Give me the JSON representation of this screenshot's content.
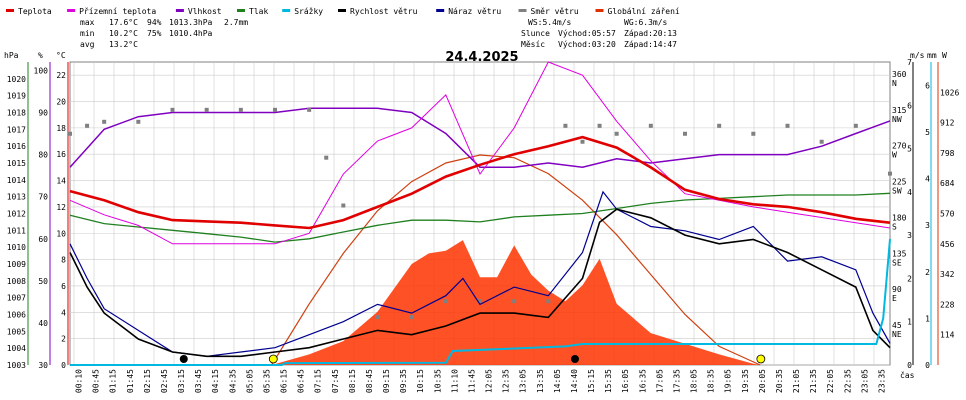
{
  "chart_data": {
    "type": "line",
    "title": "24.4.2025",
    "legend": [
      {
        "name": "Teplota",
        "color": "#e00000"
      },
      {
        "name": "Přízemní teplota",
        "color": "#e000e0"
      },
      {
        "name": "Vlhkost",
        "color": "#8000c0"
      },
      {
        "name": "Tlak",
        "color": "#208020"
      },
      {
        "name": "Srážky",
        "color": "#00b8e0"
      },
      {
        "name": "Rychlost větru",
        "color": "#000000"
      },
      {
        "name": "Náraz větru",
        "color": "#000090"
      },
      {
        "name": "Směr větru",
        "color": "#808080"
      },
      {
        "name": "Globální záření",
        "color": "#e03000"
      }
    ],
    "stats": {
      "max_label": "max",
      "max_temp": "17.6°C",
      "max_hum": "94%",
      "max_press": "1013.3hPa",
      "max_rain": "2.7mm",
      "min_label": "min",
      "min_temp": "10.2°C",
      "min_hum": "75%",
      "min_press": "1010.4hPa",
      "avg_label": "avg",
      "avg_temp": "13.2°C"
    },
    "info": {
      "ws": "WS:5.4m/s",
      "wg": "WG:6.3m/s",
      "sun_label": "Slunce",
      "sun_rise": "Východ:05:57",
      "sun_set": "Západ:20:13",
      "moon_label": "Měsíc",
      "moon_rise": "Východ:03:20",
      "moon_set": "Západ:14:47"
    },
    "axis_units": {
      "hpa": "hPa",
      "pct": "%",
      "degc": "°C",
      "ms": "m/s",
      "mm": "mm",
      "w": "W",
      "x": "čas"
    },
    "axis_hpa": [
      1003,
      1004,
      1005,
      1006,
      1007,
      1008,
      1009,
      1010,
      1011,
      1012,
      1013,
      1014,
      1015,
      1016,
      1017,
      1018,
      1019,
      1020
    ],
    "axis_pct": [
      30,
      40,
      50,
      60,
      70,
      80,
      90,
      100
    ],
    "axis_temp": [
      0,
      2,
      4,
      6,
      8,
      10,
      12,
      14,
      16,
      18,
      20,
      22
    ],
    "axis_dir": [
      {
        "v": 360,
        "n": "N"
      },
      {
        "v": 315,
        "n": "NW"
      },
      {
        "v": 270,
        "n": "W"
      },
      {
        "v": 225,
        "n": "SW"
      },
      {
        "v": 180,
        "n": "S"
      },
      {
        "v": 135,
        "n": "SE"
      },
      {
        "v": 90,
        "n": "E"
      },
      {
        "v": 45,
        "n": "NE"
      }
    ],
    "axis_ms": [
      0,
      1,
      2,
      3,
      4,
      5,
      6,
      7
    ],
    "axis_mm": [
      0,
      1,
      2,
      3,
      4,
      5,
      6
    ],
    "axis_w": [
      114,
      228,
      342,
      456,
      570,
      684,
      798,
      912,
      1026
    ],
    "x_ticks": [
      "00:10",
      "00:45",
      "01:20",
      "01:55",
      "02:30",
      "03:05",
      "03:40",
      "04:15",
      "04:50",
      "05:25",
      "06:00",
      "06:35",
      "07:10",
      "07:45",
      "08:20",
      "08:55",
      "09:30",
      "10:05",
      "10:40",
      "11:15",
      "11:50",
      "12:25",
      "13:00",
      "13:35",
      "14:10",
      "14:45",
      "15:20",
      "15:55",
      "16:30",
      "17:05",
      "17:40",
      "18:15",
      "18:50",
      "19:25",
      "20:00",
      "20:35",
      "21:10",
      "21:45",
      "22:20",
      "22:55",
      "23:30"
    ],
    "x_labels_drawn": [
      "00:10",
      "00:45",
      "01:15",
      "01:45",
      "02:15",
      "02:45",
      "03:15",
      "03:45",
      "04:15",
      "04:35",
      "05:05",
      "05:35",
      "06:15",
      "06:45",
      "07:15",
      "07:45",
      "08:15",
      "08:45",
      "09:15",
      "09:35",
      "10:15",
      "10:35",
      "11:10",
      "11:45",
      "12:05",
      "12:35",
      "13:05",
      "13:35",
      "14:05",
      "14:40",
      "15:15",
      "15:35",
      "16:05",
      "16:35",
      "17:05",
      "17:35",
      "18:05",
      "18:35",
      "19:05",
      "19:35",
      "20:05",
      "20:35",
      "21:05",
      "21:35",
      "22:05",
      "22:35",
      "23:05",
      "23:35"
    ],
    "series": {
      "temperature": [
        [
          0,
          13.2
        ],
        [
          1,
          12.5
        ],
        [
          2,
          11.6
        ],
        [
          3,
          11.0
        ],
        [
          4,
          10.9
        ],
        [
          5,
          10.8
        ],
        [
          6,
          10.6
        ],
        [
          7,
          10.4
        ],
        [
          8,
          11.0
        ],
        [
          9,
          12.0
        ],
        [
          10,
          13.0
        ],
        [
          11,
          14.3
        ],
        [
          12,
          15.2
        ],
        [
          13,
          16.0
        ],
        [
          14,
          16.6
        ],
        [
          15,
          17.3
        ],
        [
          16,
          16.5
        ],
        [
          17,
          15.0
        ],
        [
          18,
          13.3
        ],
        [
          19,
          12.6
        ],
        [
          20,
          12.2
        ],
        [
          21,
          12.0
        ],
        [
          22,
          11.6
        ],
        [
          23,
          11.1
        ],
        [
          24,
          10.8
        ]
      ],
      "ground_temperature": [
        [
          0,
          12.5
        ],
        [
          1,
          11.4
        ],
        [
          2,
          10.6
        ],
        [
          3,
          9.2
        ],
        [
          4,
          9.2
        ],
        [
          5,
          9.2
        ],
        [
          6,
          9.2
        ],
        [
          7,
          10.0
        ],
        [
          8,
          14.5
        ],
        [
          9,
          17.0
        ],
        [
          10,
          18.0
        ],
        [
          11,
          20.5
        ],
        [
          12,
          14.5
        ],
        [
          13,
          18.0
        ],
        [
          14,
          23.0
        ],
        [
          15,
          22.0
        ],
        [
          16,
          18.5
        ],
        [
          17,
          15.5
        ],
        [
          18,
          13.0
        ],
        [
          19,
          12.5
        ],
        [
          20,
          12.0
        ],
        [
          21,
          11.6
        ],
        [
          22,
          11.2
        ],
        [
          23,
          10.8
        ],
        [
          24,
          10.4
        ]
      ],
      "humidity": [
        [
          0,
          77
        ],
        [
          1,
          86
        ],
        [
          2,
          89
        ],
        [
          3,
          90
        ],
        [
          4,
          90
        ],
        [
          5,
          90
        ],
        [
          6,
          90
        ],
        [
          7,
          91
        ],
        [
          8,
          91
        ],
        [
          9,
          91
        ],
        [
          10,
          90
        ],
        [
          11,
          85
        ],
        [
          12,
          77
        ],
        [
          13,
          77
        ],
        [
          14,
          78
        ],
        [
          15,
          77
        ],
        [
          16,
          79
        ],
        [
          17,
          78
        ],
        [
          18,
          79
        ],
        [
          19,
          80
        ],
        [
          20,
          80
        ],
        [
          21,
          80
        ],
        [
          22,
          82
        ],
        [
          23,
          85
        ],
        [
          24,
          88
        ]
      ],
      "pressure": [
        [
          0,
          1011.9
        ],
        [
          1,
          1011.4
        ],
        [
          2,
          1011.2
        ],
        [
          3,
          1011.0
        ],
        [
          4,
          1010.8
        ],
        [
          5,
          1010.6
        ],
        [
          6,
          1010.3
        ],
        [
          7,
          1010.5
        ],
        [
          8,
          1010.9
        ],
        [
          9,
          1011.3
        ],
        [
          10,
          1011.6
        ],
        [
          11,
          1011.6
        ],
        [
          12,
          1011.5
        ],
        [
          13,
          1011.8
        ],
        [
          14,
          1011.9
        ],
        [
          15,
          1012.0
        ],
        [
          16,
          1012.3
        ],
        [
          17,
          1012.6
        ],
        [
          18,
          1012.8
        ],
        [
          19,
          1012.9
        ],
        [
          20,
          1013.0
        ],
        [
          21,
          1013.1
        ],
        [
          22,
          1013.1
        ],
        [
          23,
          1013.1
        ],
        [
          24,
          1013.2
        ]
      ],
      "rain_mm": [
        [
          0,
          0
        ],
        [
          6.2,
          0
        ],
        [
          6.3,
          0.04
        ],
        [
          11,
          0.05
        ],
        [
          11.2,
          0.3
        ],
        [
          14.5,
          0.4
        ],
        [
          15,
          0.45
        ],
        [
          23.6,
          0.45
        ],
        [
          23.8,
          1.0
        ],
        [
          24,
          2.7
        ]
      ],
      "wind_speed": [
        [
          0,
          2.6
        ],
        [
          0.5,
          1.8
        ],
        [
          1,
          1.2
        ],
        [
          2,
          0.6
        ],
        [
          3,
          0.3
        ],
        [
          4,
          0.2
        ],
        [
          5,
          0.2
        ],
        [
          6,
          0.3
        ],
        [
          7,
          0.4
        ],
        [
          8,
          0.6
        ],
        [
          9,
          0.8
        ],
        [
          10,
          0.7
        ],
        [
          11,
          0.9
        ],
        [
          12,
          1.2
        ],
        [
          13,
          1.2
        ],
        [
          14,
          1.1
        ],
        [
          15,
          2.0
        ],
        [
          15.5,
          3.3
        ],
        [
          16,
          3.6
        ],
        [
          17,
          3.4
        ],
        [
          18,
          3.0
        ],
        [
          19,
          2.8
        ],
        [
          20,
          2.9
        ],
        [
          21,
          2.6
        ],
        [
          22,
          2.2
        ],
        [
          23,
          1.8
        ],
        [
          23.5,
          0.8
        ],
        [
          24,
          0.4
        ]
      ],
      "wind_gust": [
        [
          0,
          2.8
        ],
        [
          0.5,
          2.0
        ],
        [
          1,
          1.3
        ],
        [
          2,
          0.8
        ],
        [
          3,
          0.3
        ],
        [
          4,
          0.2
        ],
        [
          5,
          0.3
        ],
        [
          6,
          0.4
        ],
        [
          7,
          0.7
        ],
        [
          8,
          1.0
        ],
        [
          9,
          1.4
        ],
        [
          10,
          1.2
        ],
        [
          11,
          1.6
        ],
        [
          11.5,
          2.0
        ],
        [
          12,
          1.4
        ],
        [
          13,
          1.8
        ],
        [
          14,
          1.6
        ],
        [
          15,
          2.6
        ],
        [
          15.6,
          4.0
        ],
        [
          16,
          3.6
        ],
        [
          17,
          3.2
        ],
        [
          18,
          3.1
        ],
        [
          19,
          2.9
        ],
        [
          20,
          3.2
        ],
        [
          21,
          2.4
        ],
        [
          22,
          2.5
        ],
        [
          23,
          2.2
        ],
        [
          23.5,
          1.2
        ],
        [
          24,
          0.5
        ]
      ],
      "wind_dir": [
        [
          0,
          290
        ],
        [
          0.5,
          300
        ],
        [
          1,
          305
        ],
        [
          2,
          305
        ],
        [
          3,
          320
        ],
        [
          4,
          320
        ],
        [
          5,
          320
        ],
        [
          6,
          320
        ],
        [
          7,
          320
        ],
        [
          7.5,
          260
        ],
        [
          8,
          200
        ],
        [
          9,
          60
        ],
        [
          10,
          60
        ],
        [
          11,
          80
        ],
        [
          12,
          80
        ],
        [
          13,
          80
        ],
        [
          14,
          80
        ],
        [
          14.5,
          300
        ],
        [
          15,
          280
        ],
        [
          15.5,
          300
        ],
        [
          16,
          290
        ],
        [
          17,
          300
        ],
        [
          18,
          290
        ],
        [
          19,
          300
        ],
        [
          20,
          290
        ],
        [
          21,
          300
        ],
        [
          22,
          280
        ],
        [
          23,
          300
        ],
        [
          24,
          240
        ]
      ],
      "solar_w": [
        [
          0,
          0
        ],
        [
          5.9,
          0
        ],
        [
          7,
          40
        ],
        [
          8,
          90
        ],
        [
          9,
          200
        ],
        [
          10,
          380
        ],
        [
          10.5,
          420
        ],
        [
          11,
          430
        ],
        [
          11.5,
          470
        ],
        [
          12,
          330
        ],
        [
          12.5,
          330
        ],
        [
          13,
          450
        ],
        [
          13.5,
          340
        ],
        [
          14,
          280
        ],
        [
          14.5,
          240
        ],
        [
          15,
          300
        ],
        [
          15.5,
          400
        ],
        [
          16,
          230
        ],
        [
          17,
          120
        ],
        [
          18,
          80
        ],
        [
          19,
          40
        ],
        [
          20,
          5
        ],
        [
          20.2,
          0
        ],
        [
          24,
          0
        ]
      ],
      "clear_sky_w": [
        [
          5.9,
          0
        ],
        [
          7,
          230
        ],
        [
          8,
          420
        ],
        [
          9,
          580
        ],
        [
          10,
          690
        ],
        [
          11,
          760
        ],
        [
          12,
          790
        ],
        [
          13,
          780
        ],
        [
          14,
          720
        ],
        [
          15,
          620
        ],
        [
          16,
          490
        ],
        [
          17,
          340
        ],
        [
          18,
          190
        ],
        [
          19,
          70
        ],
        [
          20.2,
          0
        ]
      ]
    },
    "x_range": [
      0,
      24
    ],
    "ylim_temp": [
      0,
      23
    ],
    "ylim_pct": [
      30,
      102
    ],
    "ylim_hpa": [
      1003,
      1021
    ],
    "ylim_ms": [
      0,
      7
    ],
    "ylim_w": [
      0,
      1140
    ],
    "ylim_mm": [
      0,
      6.5
    ],
    "ylim_dir": [
      0,
      380
    ],
    "grid": true
  }
}
